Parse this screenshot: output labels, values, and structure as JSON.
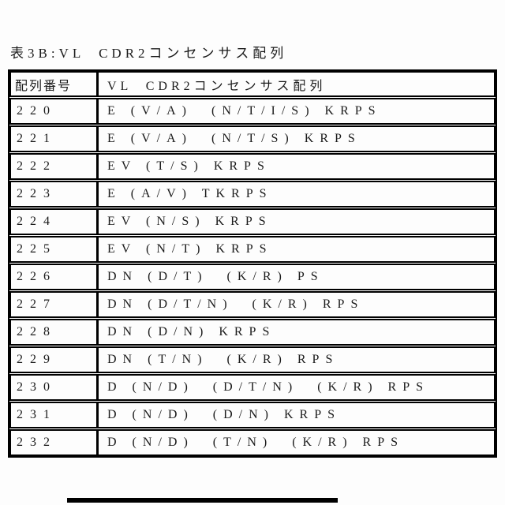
{
  "title": "表3B:VL  CDR2コンセンサス配列",
  "table": {
    "header": {
      "seq_no": "配列番号",
      "seq": "VL  CDR2コンセンサス配列"
    },
    "rows": [
      {
        "no": "220",
        "seq": "E (V/A)  (N/T/I/S) KRPS"
      },
      {
        "no": "221",
        "seq": "E (V/A)  (N/T/S) KRPS"
      },
      {
        "no": "222",
        "seq": "EV (T/S) KRPS"
      },
      {
        "no": "223",
        "seq": "E (A/V) TKRPS"
      },
      {
        "no": "224",
        "seq": "EV (N/S) KRPS"
      },
      {
        "no": "225",
        "seq": "EV (N/T) KRPS"
      },
      {
        "no": "226",
        "seq": "DN (D/T)  (K/R) PS"
      },
      {
        "no": "227",
        "seq": "DN (D/T/N)  (K/R) RPS"
      },
      {
        "no": "228",
        "seq": "DN (D/N) KRPS"
      },
      {
        "no": "229",
        "seq": "DN (T/N)  (K/R) RPS"
      },
      {
        "no": "230",
        "seq": "D (N/D)  (D/T/N)  (K/R) RPS"
      },
      {
        "no": "231",
        "seq": "D (N/D)  (D/N) KRPS"
      },
      {
        "no": "232",
        "seq": "D (N/D)  (T/N)  (K/R) RPS"
      }
    ]
  },
  "colors": {
    "ink": "#1b1b1b",
    "border": "#000000",
    "background": "#fdfdfd"
  }
}
